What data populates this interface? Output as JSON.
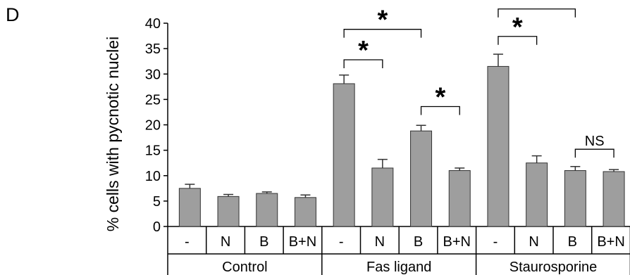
{
  "panel_label": "D",
  "chart_data": {
    "type": "bar",
    "ylabel": "% cells with pycnotic nuclei",
    "ylim": [
      0,
      40
    ],
    "yticks": [
      0,
      5,
      10,
      15,
      20,
      25,
      30,
      35,
      40
    ],
    "grid": false,
    "bar_color": "#9e9e9e",
    "groups": [
      {
        "label": "Control",
        "bars": [
          {
            "label": "-",
            "value": 7.5,
            "error": 0.8
          },
          {
            "label": "N",
            "value": 5.9,
            "error": 0.4
          },
          {
            "label": "B",
            "value": 6.5,
            "error": 0.3
          },
          {
            "label": "B+N",
            "value": 5.7,
            "error": 0.5
          }
        ]
      },
      {
        "label": "Fas ligand",
        "bars": [
          {
            "label": "-",
            "value": 28.1,
            "error": 1.7
          },
          {
            "label": "N",
            "value": 11.5,
            "error": 1.7
          },
          {
            "label": "B",
            "value": 18.8,
            "error": 1.1
          },
          {
            "label": "B+N",
            "value": 11.0,
            "error": 0.5
          }
        ]
      },
      {
        "label": "Staurosporine",
        "bars": [
          {
            "label": "-",
            "value": 31.5,
            "error": 2.4
          },
          {
            "label": "N",
            "value": 12.5,
            "error": 1.4
          },
          {
            "label": "B",
            "value": 11.0,
            "error": 0.8
          },
          {
            "label": "B+N",
            "value": 10.8,
            "error": 0.4
          }
        ]
      }
    ],
    "comparisons": [
      {
        "group": 1,
        "from": 0,
        "to": 1,
        "label": "*",
        "y": 32.8
      },
      {
        "group": 1,
        "from": 0,
        "to": 2,
        "label": "*",
        "y": 38.8
      },
      {
        "group": 1,
        "from": 2,
        "to": 3,
        "label": "*",
        "y": 23.6
      },
      {
        "group": 2,
        "from": 0,
        "to": 1,
        "label": "*",
        "y": 37.4
      },
      {
        "group": 2,
        "from": 0,
        "to": 2,
        "label": "*",
        "y": 42.8
      },
      {
        "group": 2,
        "from": 2,
        "to": 3,
        "label": "NS",
        "y": 15.2
      }
    ]
  }
}
